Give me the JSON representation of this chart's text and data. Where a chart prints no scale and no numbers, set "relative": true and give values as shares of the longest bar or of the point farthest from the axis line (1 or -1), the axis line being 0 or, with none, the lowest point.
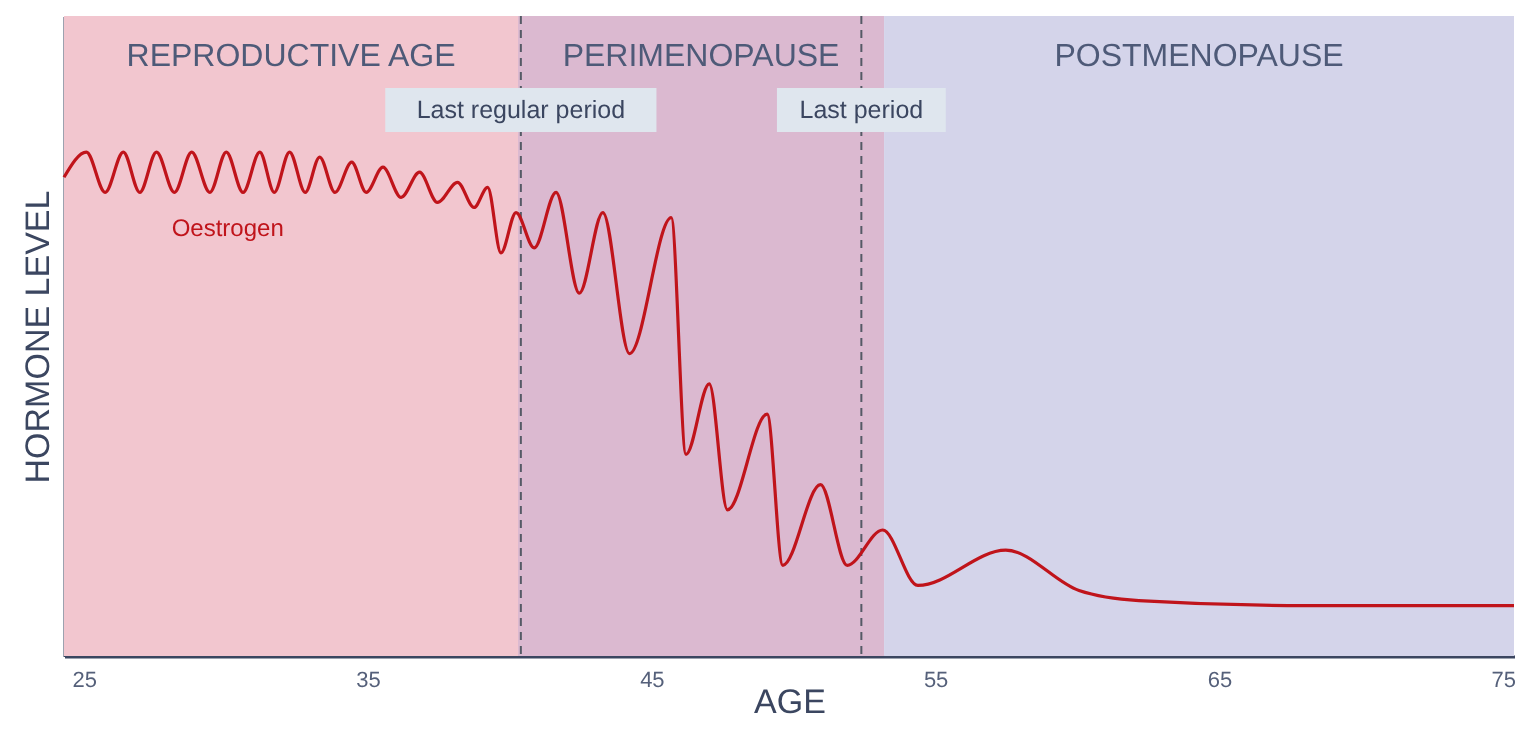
{
  "chart_data": {
    "type": "line",
    "xlabel": "AGE",
    "ylabel": "HORMONE LEVEL",
    "relative": true,
    "xlim": [
      24.3,
      75.4
    ],
    "xticks": [
      25,
      35,
      45,
      55,
      65,
      75
    ],
    "marker": "none",
    "line_style": "solid",
    "bands": [
      {
        "axis": "x",
        "from": 24.3,
        "to": 40.3,
        "label": "REPRODUCTIVE AGE",
        "color": "#f2c6cf"
      },
      {
        "axis": "x",
        "from": 40.3,
        "to": 53.2,
        "label": "PERIMENOPAUSE",
        "color": "#dbb9d0"
      },
      {
        "axis": "x",
        "from": 53.2,
        "to": 75.4,
        "label": "POSTMENOPAUSE",
        "color": "#d4d4ea"
      }
    ],
    "ref_lines": [
      {
        "axis": "x",
        "value": 40.4,
        "label": "Last regular period",
        "color": "#555a66",
        "line_style": "dashed"
      },
      {
        "axis": "x",
        "value": 52.4,
        "label": "Last period",
        "color": "#555a66",
        "line_style": "dashed"
      }
    ],
    "series": [
      {
        "name": "Oestrogen",
        "color": "#c0141b",
        "x": [
          24.3,
          25.09,
          25.75,
          26.39,
          26.97,
          27.56,
          28.19,
          28.8,
          29.44,
          30.02,
          30.61,
          31.2,
          31.71,
          32.25,
          32.8,
          33.31,
          33.85,
          34.44,
          34.95,
          35.54,
          36.18,
          36.83,
          37.46,
          38.17,
          38.75,
          39.23,
          39.7,
          40.23,
          40.87,
          41.64,
          42.46,
          43.29,
          44.23,
          45.7,
          46.22,
          47.04,
          47.68,
          49.08,
          49.63,
          50.96,
          51.9,
          53.15,
          54.39,
          57.49,
          60.07,
          62.18,
          68.03,
          75.4
        ],
        "values": [
          0.95,
          1.0,
          0.92,
          1.0,
          0.92,
          1.0,
          0.92,
          1.0,
          0.92,
          1.0,
          0.92,
          1.0,
          0.92,
          1.0,
          0.92,
          0.99,
          0.92,
          0.98,
          0.92,
          0.97,
          0.91,
          0.96,
          0.9,
          0.94,
          0.89,
          0.93,
          0.8,
          0.88,
          0.81,
          0.92,
          0.72,
          0.88,
          0.6,
          0.87,
          0.4,
          0.54,
          0.29,
          0.48,
          0.18,
          0.34,
          0.18,
          0.25,
          0.14,
          0.21,
          0.13,
          0.11,
          0.1,
          0.1
        ]
      }
    ]
  }
}
